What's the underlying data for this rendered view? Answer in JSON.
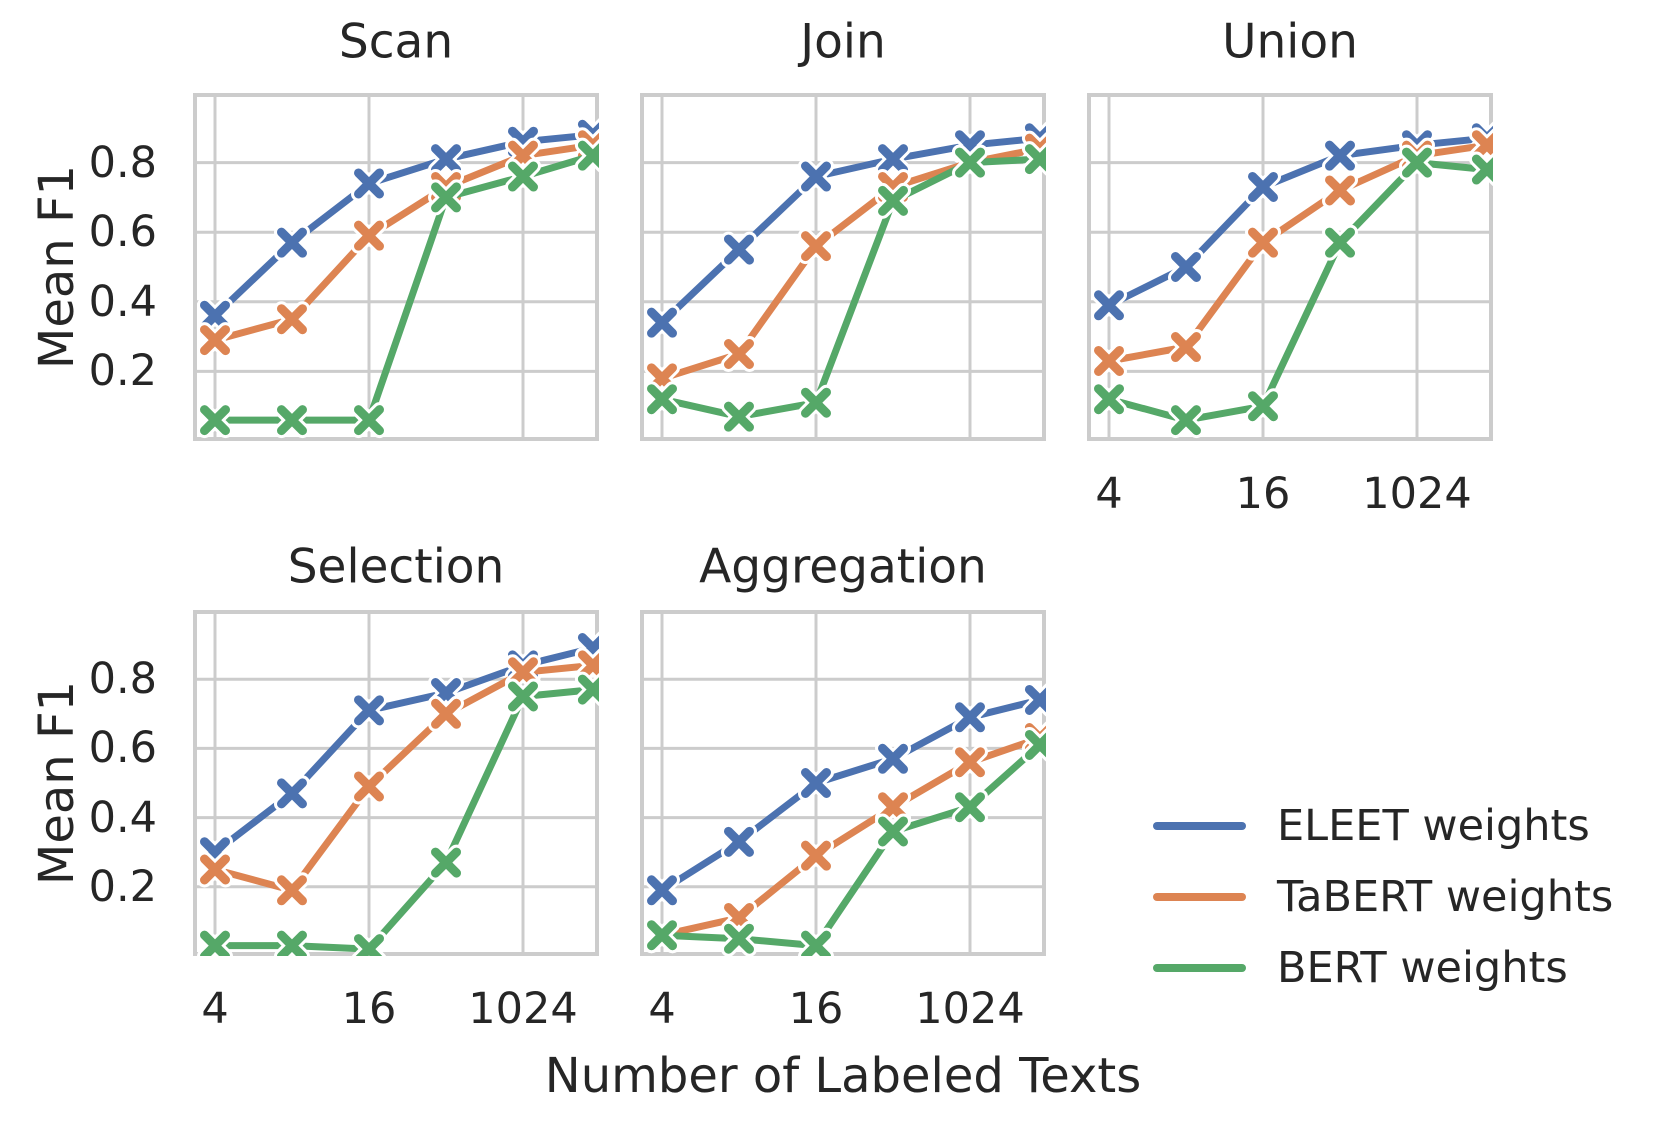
{
  "figure": {
    "background": "#ffffff",
    "text_color": "#262626",
    "grid_color": "#cccccc",
    "spine_color": "#cccccc",
    "ylabel": "Mean F1",
    "xlabel": "Number of Labeled Texts"
  },
  "legend": {
    "position": "lower-right",
    "items": [
      {
        "label": "ELEET weights",
        "color": "#4c72b0"
      },
      {
        "label": "TaBERT weights",
        "color": "#dd8452"
      },
      {
        "label": "BERT weights",
        "color": "#55a868"
      }
    ]
  },
  "axes_config": {
    "type": "line",
    "marker": "X",
    "grid": true,
    "ylim": [
      0,
      1
    ],
    "yticks": [
      0.8,
      0.6,
      0.4,
      0.2
    ],
    "ytick_labels": [
      "0.8",
      "0.6",
      "0.4",
      "0.2"
    ],
    "n_points": 6,
    "x_tick_point_indices": [
      0,
      2,
      4
    ],
    "x_tick_labels": [
      "4",
      "16",
      "1024"
    ]
  },
  "chart_data": [
    {
      "type": "line",
      "title": "Scan",
      "row": 0,
      "col": 0,
      "show_xticks": false,
      "show_yticks": true,
      "series": [
        {
          "name": "ELEET weights",
          "color": "#4c72b0",
          "values": [
            0.36,
            0.57,
            0.74,
            0.81,
            0.86,
            0.88
          ]
        },
        {
          "name": "TaBERT weights",
          "color": "#dd8452",
          "values": [
            0.29,
            0.35,
            0.59,
            0.73,
            0.82,
            0.85
          ]
        },
        {
          "name": "BERT weights",
          "color": "#55a868",
          "values": [
            0.06,
            0.06,
            0.06,
            0.7,
            0.76,
            0.82
          ]
        }
      ]
    },
    {
      "type": "line",
      "title": "Join",
      "row": 0,
      "col": 1,
      "show_xticks": false,
      "show_yticks": false,
      "series": [
        {
          "name": "ELEET weights",
          "color": "#4c72b0",
          "values": [
            0.34,
            0.55,
            0.76,
            0.81,
            0.85,
            0.87
          ]
        },
        {
          "name": "TaBERT weights",
          "color": "#dd8452",
          "values": [
            0.18,
            0.25,
            0.56,
            0.73,
            0.8,
            0.84
          ]
        },
        {
          "name": "BERT weights",
          "color": "#55a868",
          "values": [
            0.12,
            0.07,
            0.11,
            0.69,
            0.8,
            0.81
          ]
        }
      ]
    },
    {
      "type": "line",
      "title": "Union",
      "row": 0,
      "col": 2,
      "show_xticks": true,
      "show_yticks": false,
      "series": [
        {
          "name": "ELEET weights",
          "color": "#4c72b0",
          "values": [
            0.39,
            0.5,
            0.73,
            0.82,
            0.85,
            0.87
          ]
        },
        {
          "name": "TaBERT weights",
          "color": "#dd8452",
          "values": [
            0.23,
            0.27,
            0.57,
            0.72,
            0.82,
            0.85
          ]
        },
        {
          "name": "BERT weights",
          "color": "#55a868",
          "values": [
            0.12,
            0.06,
            0.1,
            0.57,
            0.8,
            0.78
          ]
        }
      ]
    },
    {
      "type": "line",
      "title": "Selection",
      "row": 1,
      "col": 0,
      "show_xticks": true,
      "show_yticks": true,
      "series": [
        {
          "name": "ELEET weights",
          "color": "#4c72b0",
          "values": [
            0.3,
            0.47,
            0.71,
            0.76,
            0.84,
            0.89
          ]
        },
        {
          "name": "TaBERT weights",
          "color": "#dd8452",
          "values": [
            0.25,
            0.19,
            0.49,
            0.7,
            0.82,
            0.84
          ]
        },
        {
          "name": "BERT weights",
          "color": "#55a868",
          "values": [
            0.03,
            0.03,
            0.02,
            0.27,
            0.75,
            0.77
          ]
        }
      ]
    },
    {
      "type": "line",
      "title": "Aggregation",
      "row": 1,
      "col": 1,
      "show_xticks": true,
      "show_yticks": false,
      "series": [
        {
          "name": "ELEET weights",
          "color": "#4c72b0",
          "values": [
            0.19,
            0.33,
            0.5,
            0.57,
            0.69,
            0.74
          ]
        },
        {
          "name": "TaBERT weights",
          "color": "#dd8452",
          "values": [
            0.06,
            0.11,
            0.29,
            0.43,
            0.56,
            0.63
          ]
        },
        {
          "name": "BERT weights",
          "color": "#55a868",
          "values": [
            0.06,
            0.05,
            0.03,
            0.36,
            0.43,
            0.61
          ]
        }
      ]
    }
  ]
}
